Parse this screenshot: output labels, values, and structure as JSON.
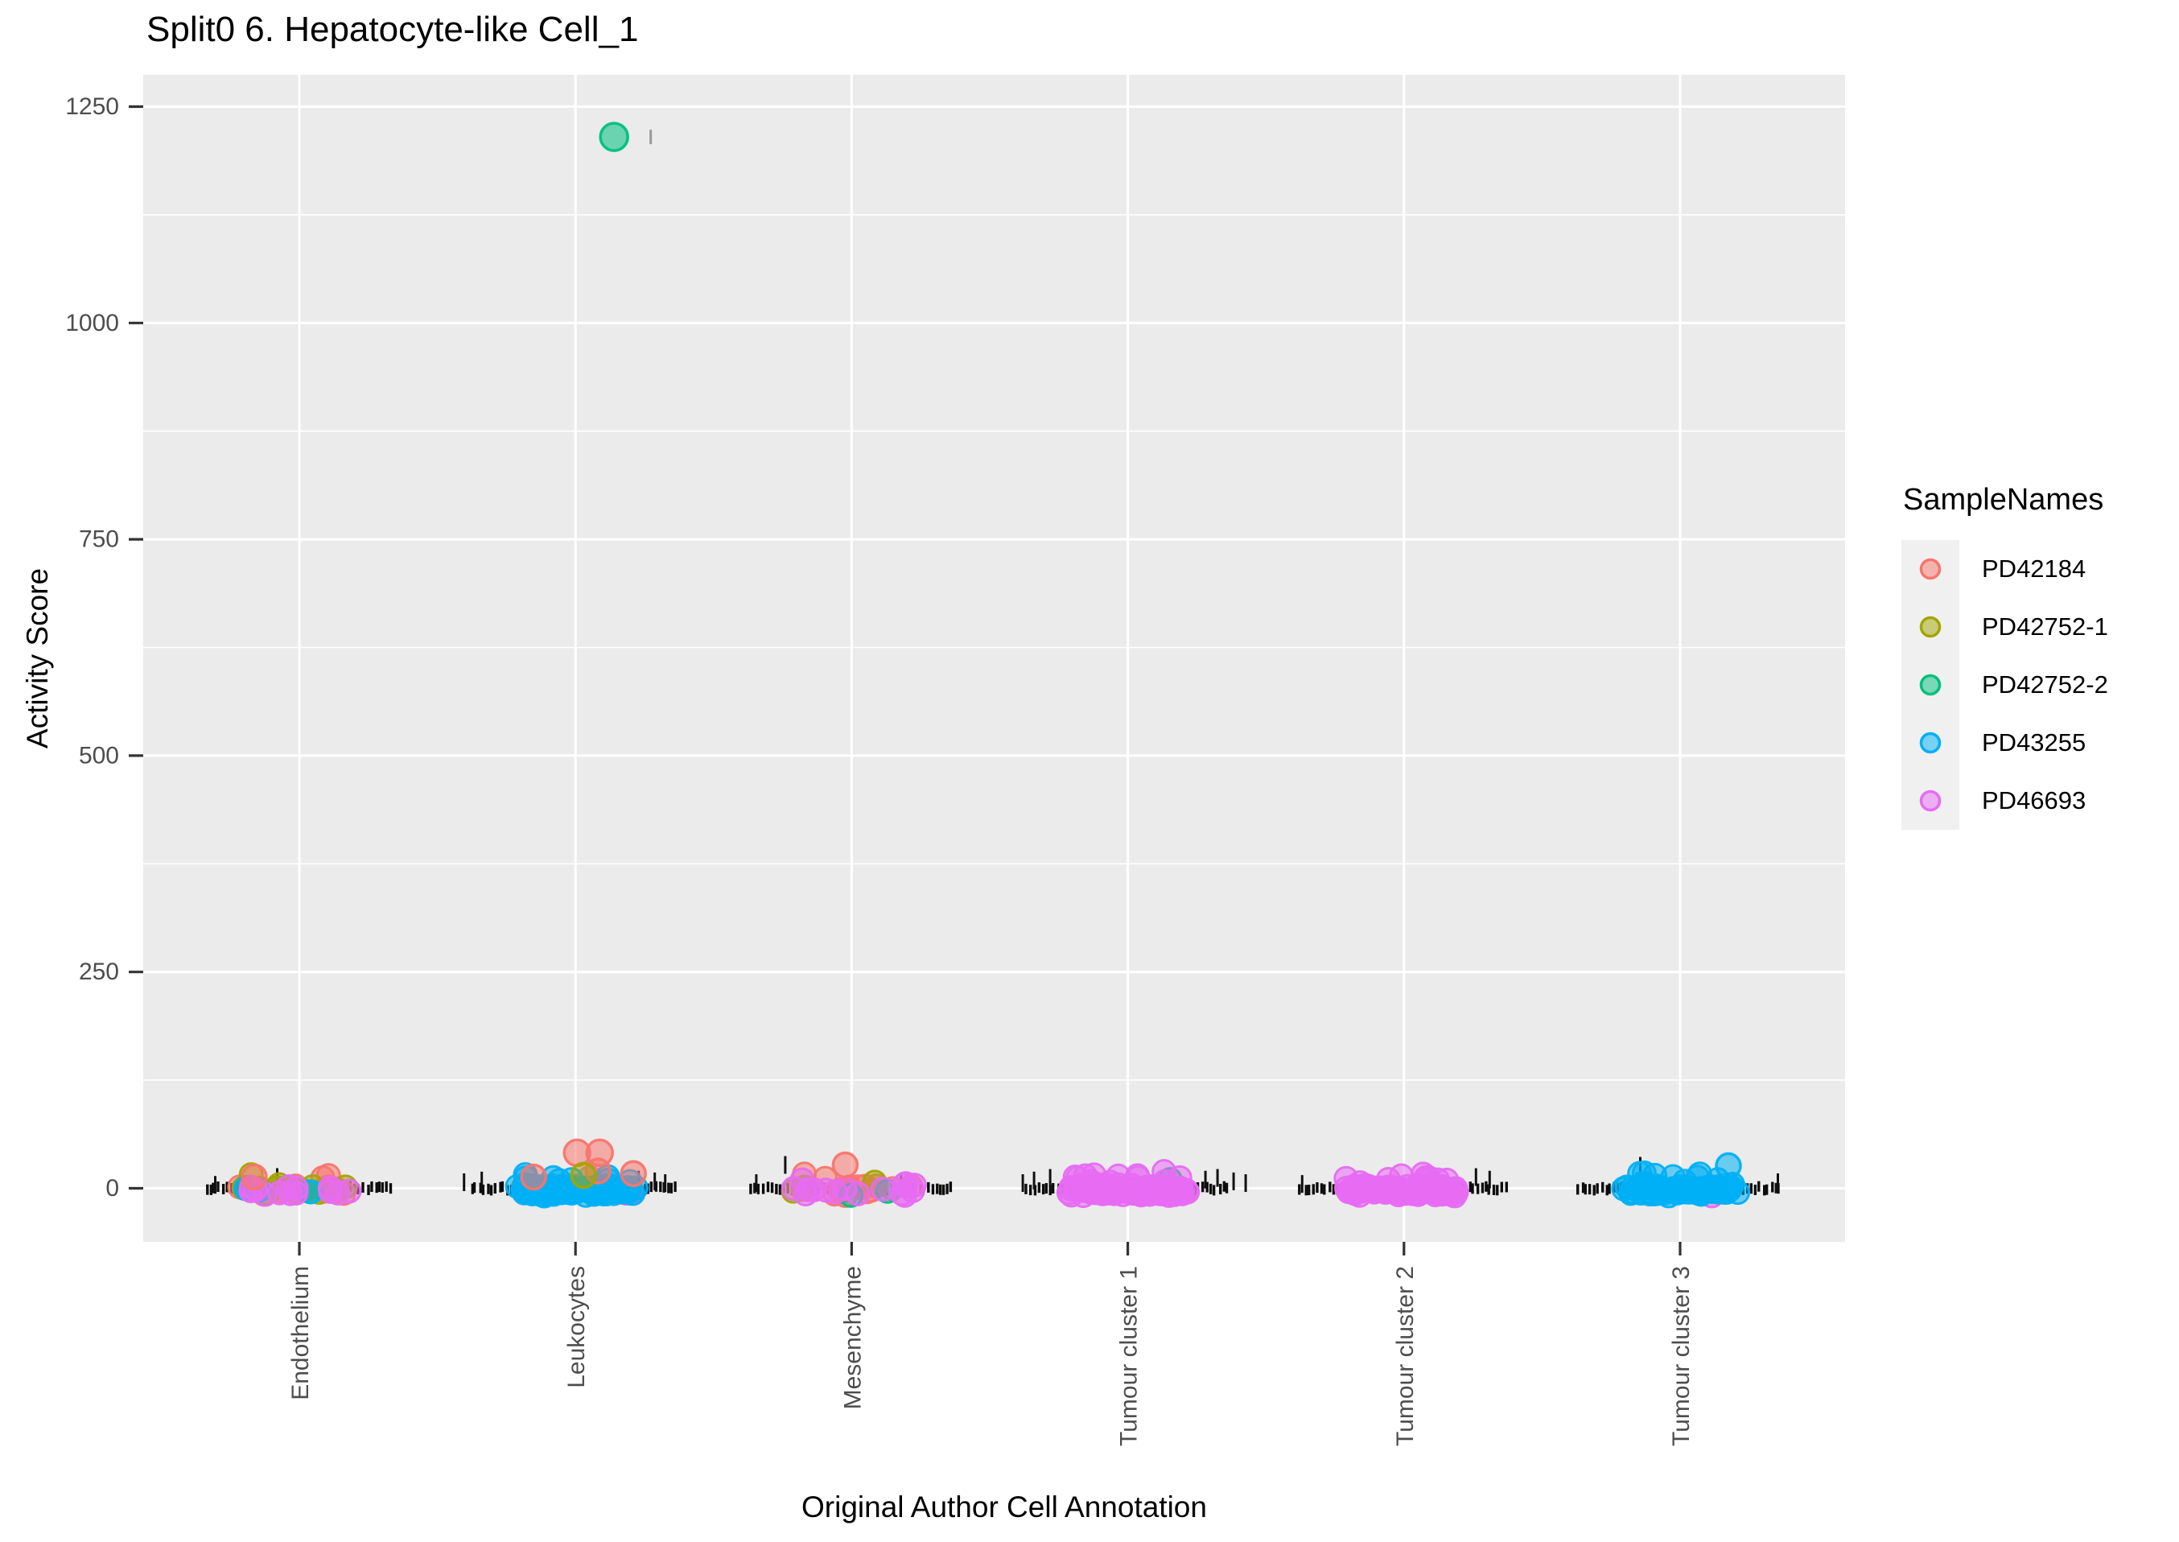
{
  "chart_data": {
    "type": "scatter",
    "subtype": "jitter-strip-plot",
    "title": "Split0 6. Hepatocyte-like Cell_1",
    "xlabel": "Original Author Cell Annotation",
    "ylabel": "Activity Score",
    "x_categories": [
      "Endothelium",
      "Leukocytes",
      "Mesenchyme",
      "Tumour cluster 1",
      "Tumour cluster 2",
      "Tumour cluster 3"
    ],
    "y_ticks": [
      0,
      250,
      500,
      750,
      1000,
      1250
    ],
    "ylim": [
      -62,
      1288
    ],
    "grid": {
      "horizontal_major": true,
      "horizontal_minor": true,
      "vertical_major_per_category": true,
      "color": "#FFFFFF"
    },
    "panel_bg": "#EBEBEB",
    "tick_color": "#333333",
    "tick_label_color": "#4D4D4D",
    "strip_mark_color": "#0D0D0D",
    "point_alpha": 0.55,
    "legend": {
      "title": "SampleNames",
      "position": "right",
      "entries": [
        {
          "name": "PD42184",
          "color": "#F8766D"
        },
        {
          "name": "PD42752-1",
          "color": "#A3A500"
        },
        {
          "name": "PD42752-2",
          "color": "#00BF7D"
        },
        {
          "name": "PD43255",
          "color": "#00B0F6"
        },
        {
          "name": "PD46693",
          "color": "#E76BF3"
        }
      ]
    },
    "clusters": [
      {
        "category": "Endothelium",
        "blob_halfwidth": 80,
        "strip_halfwidth": 117,
        "groups": [
          {
            "sample": "PD42184",
            "n": 14
          },
          {
            "sample": "PD42752-1",
            "n": 11
          },
          {
            "sample": "PD42752-2",
            "n": 2
          },
          {
            "sample": "PD43255",
            "n": 3
          },
          {
            "sample": "PD46693",
            "n": 13
          }
        ],
        "tall_ticks": [
          {
            "dx": -29,
            "value": 13
          },
          {
            "dx": -106,
            "value": 4
          }
        ]
      },
      {
        "category": "Leukocytes",
        "blob_halfwidth": 78,
        "strip_halfwidth": 131,
        "groups": [
          {
            "sample": "PD42184",
            "n": 11
          },
          {
            "sample": "PD42752-1",
            "n": 5
          },
          {
            "sample": "PD46693",
            "n": 3
          },
          {
            "sample": "PD43255",
            "n": 96
          }
        ],
        "tall_ticks": [
          {
            "dx": 92,
            "value": 1215,
            "color": "#9A9A9A",
            "h": 18
          },
          {
            "dx": -118,
            "value": 9
          },
          {
            "dx": -140,
            "value": 7
          },
          {
            "dx": 77,
            "value": 10
          },
          {
            "dx": 97,
            "value": 8
          },
          {
            "dx": 110,
            "value": 6
          }
        ]
      },
      {
        "category": "Mesenchyme",
        "blob_halfwidth": 80,
        "strip_halfwidth": 127,
        "groups": [
          {
            "sample": "PD42184",
            "n": 18
          },
          {
            "sample": "PD42752-1",
            "n": 3
          },
          {
            "sample": "PD42752-2",
            "n": 2
          },
          {
            "sample": "PD46693",
            "n": 16
          }
        ],
        "tall_ticks": [
          {
            "dx": -84,
            "value": 27
          },
          {
            "dx": -120,
            "value": 6
          },
          {
            "dx": 60,
            "value": 8
          }
        ]
      },
      {
        "category": "Tumour cluster 1",
        "blob_halfwidth": 78,
        "strip_halfwidth": 128,
        "groups": [
          {
            "sample": "PD42752-2",
            "n": 3
          },
          {
            "sample": "PD43255",
            "n": 2
          },
          {
            "sample": "PD46693",
            "n": 96
          }
        ],
        "tall_ticks": [
          {
            "dx": -118,
            "value": 9
          },
          {
            "dx": -98,
            "value": 12
          },
          {
            "dx": -132,
            "value": 6
          },
          {
            "dx": 95,
            "value": 10
          },
          {
            "dx": 110,
            "value": 12
          },
          {
            "dx": 130,
            "value": 8
          },
          {
            "dx": 145,
            "value": 6
          }
        ]
      },
      {
        "category": "Tumour cluster 2",
        "blob_halfwidth": 76,
        "strip_halfwidth": 130,
        "groups": [
          {
            "sample": "PD46693",
            "n": 96
          }
        ],
        "tall_ticks": [
          {
            "dx": 88,
            "value": 13
          },
          {
            "dx": 105,
            "value": 10
          },
          {
            "dx": -128,
            "value": 5
          }
        ]
      },
      {
        "category": "Tumour cluster 3",
        "blob_halfwidth": 76,
        "strip_halfwidth": 128,
        "groups": [
          {
            "sample": "PD46693",
            "n": 2
          },
          {
            "sample": "PD43255",
            "n": 96
          }
        ],
        "tall_ticks": [
          {
            "dx": -51,
            "value": 26
          },
          {
            "dx": -55,
            "value": 8
          },
          {
            "dx": 120,
            "value": 7
          }
        ]
      }
    ],
    "outlier_points": [
      {
        "category": "Leukocytes",
        "sample": "PD42752-2",
        "value": 1215,
        "dx": 48,
        "r": 17
      },
      {
        "category": "Leukocytes",
        "sample": "PD42184",
        "value": 41,
        "dx": 2,
        "r": 16
      },
      {
        "category": "Leukocytes",
        "sample": "PD42184",
        "value": 41,
        "dx": 30,
        "r": 16
      },
      {
        "category": "Leukocytes",
        "sample": "PD42184",
        "value": 20,
        "dx": 28,
        "r": 15
      },
      {
        "category": "Leukocytes",
        "sample": "PD42184",
        "value": 17,
        "dx": 72,
        "r": 15
      },
      {
        "category": "Leukocytes",
        "sample": "PD42184",
        "value": 13,
        "dx": -52,
        "r": 15
      },
      {
        "category": "Leukocytes",
        "sample": "PD42752-1",
        "value": 15,
        "dx": 10,
        "r": 15
      },
      {
        "category": "Endothelium",
        "sample": "PD42184",
        "value": 13,
        "dx": -56,
        "r": 15
      },
      {
        "category": "Mesenchyme",
        "sample": "PD42184",
        "value": 27,
        "dx": -8,
        "r": 15
      },
      {
        "category": "Tumour cluster 3",
        "sample": "PD43255",
        "value": 26,
        "dx": 60,
        "r": 15
      }
    ]
  }
}
